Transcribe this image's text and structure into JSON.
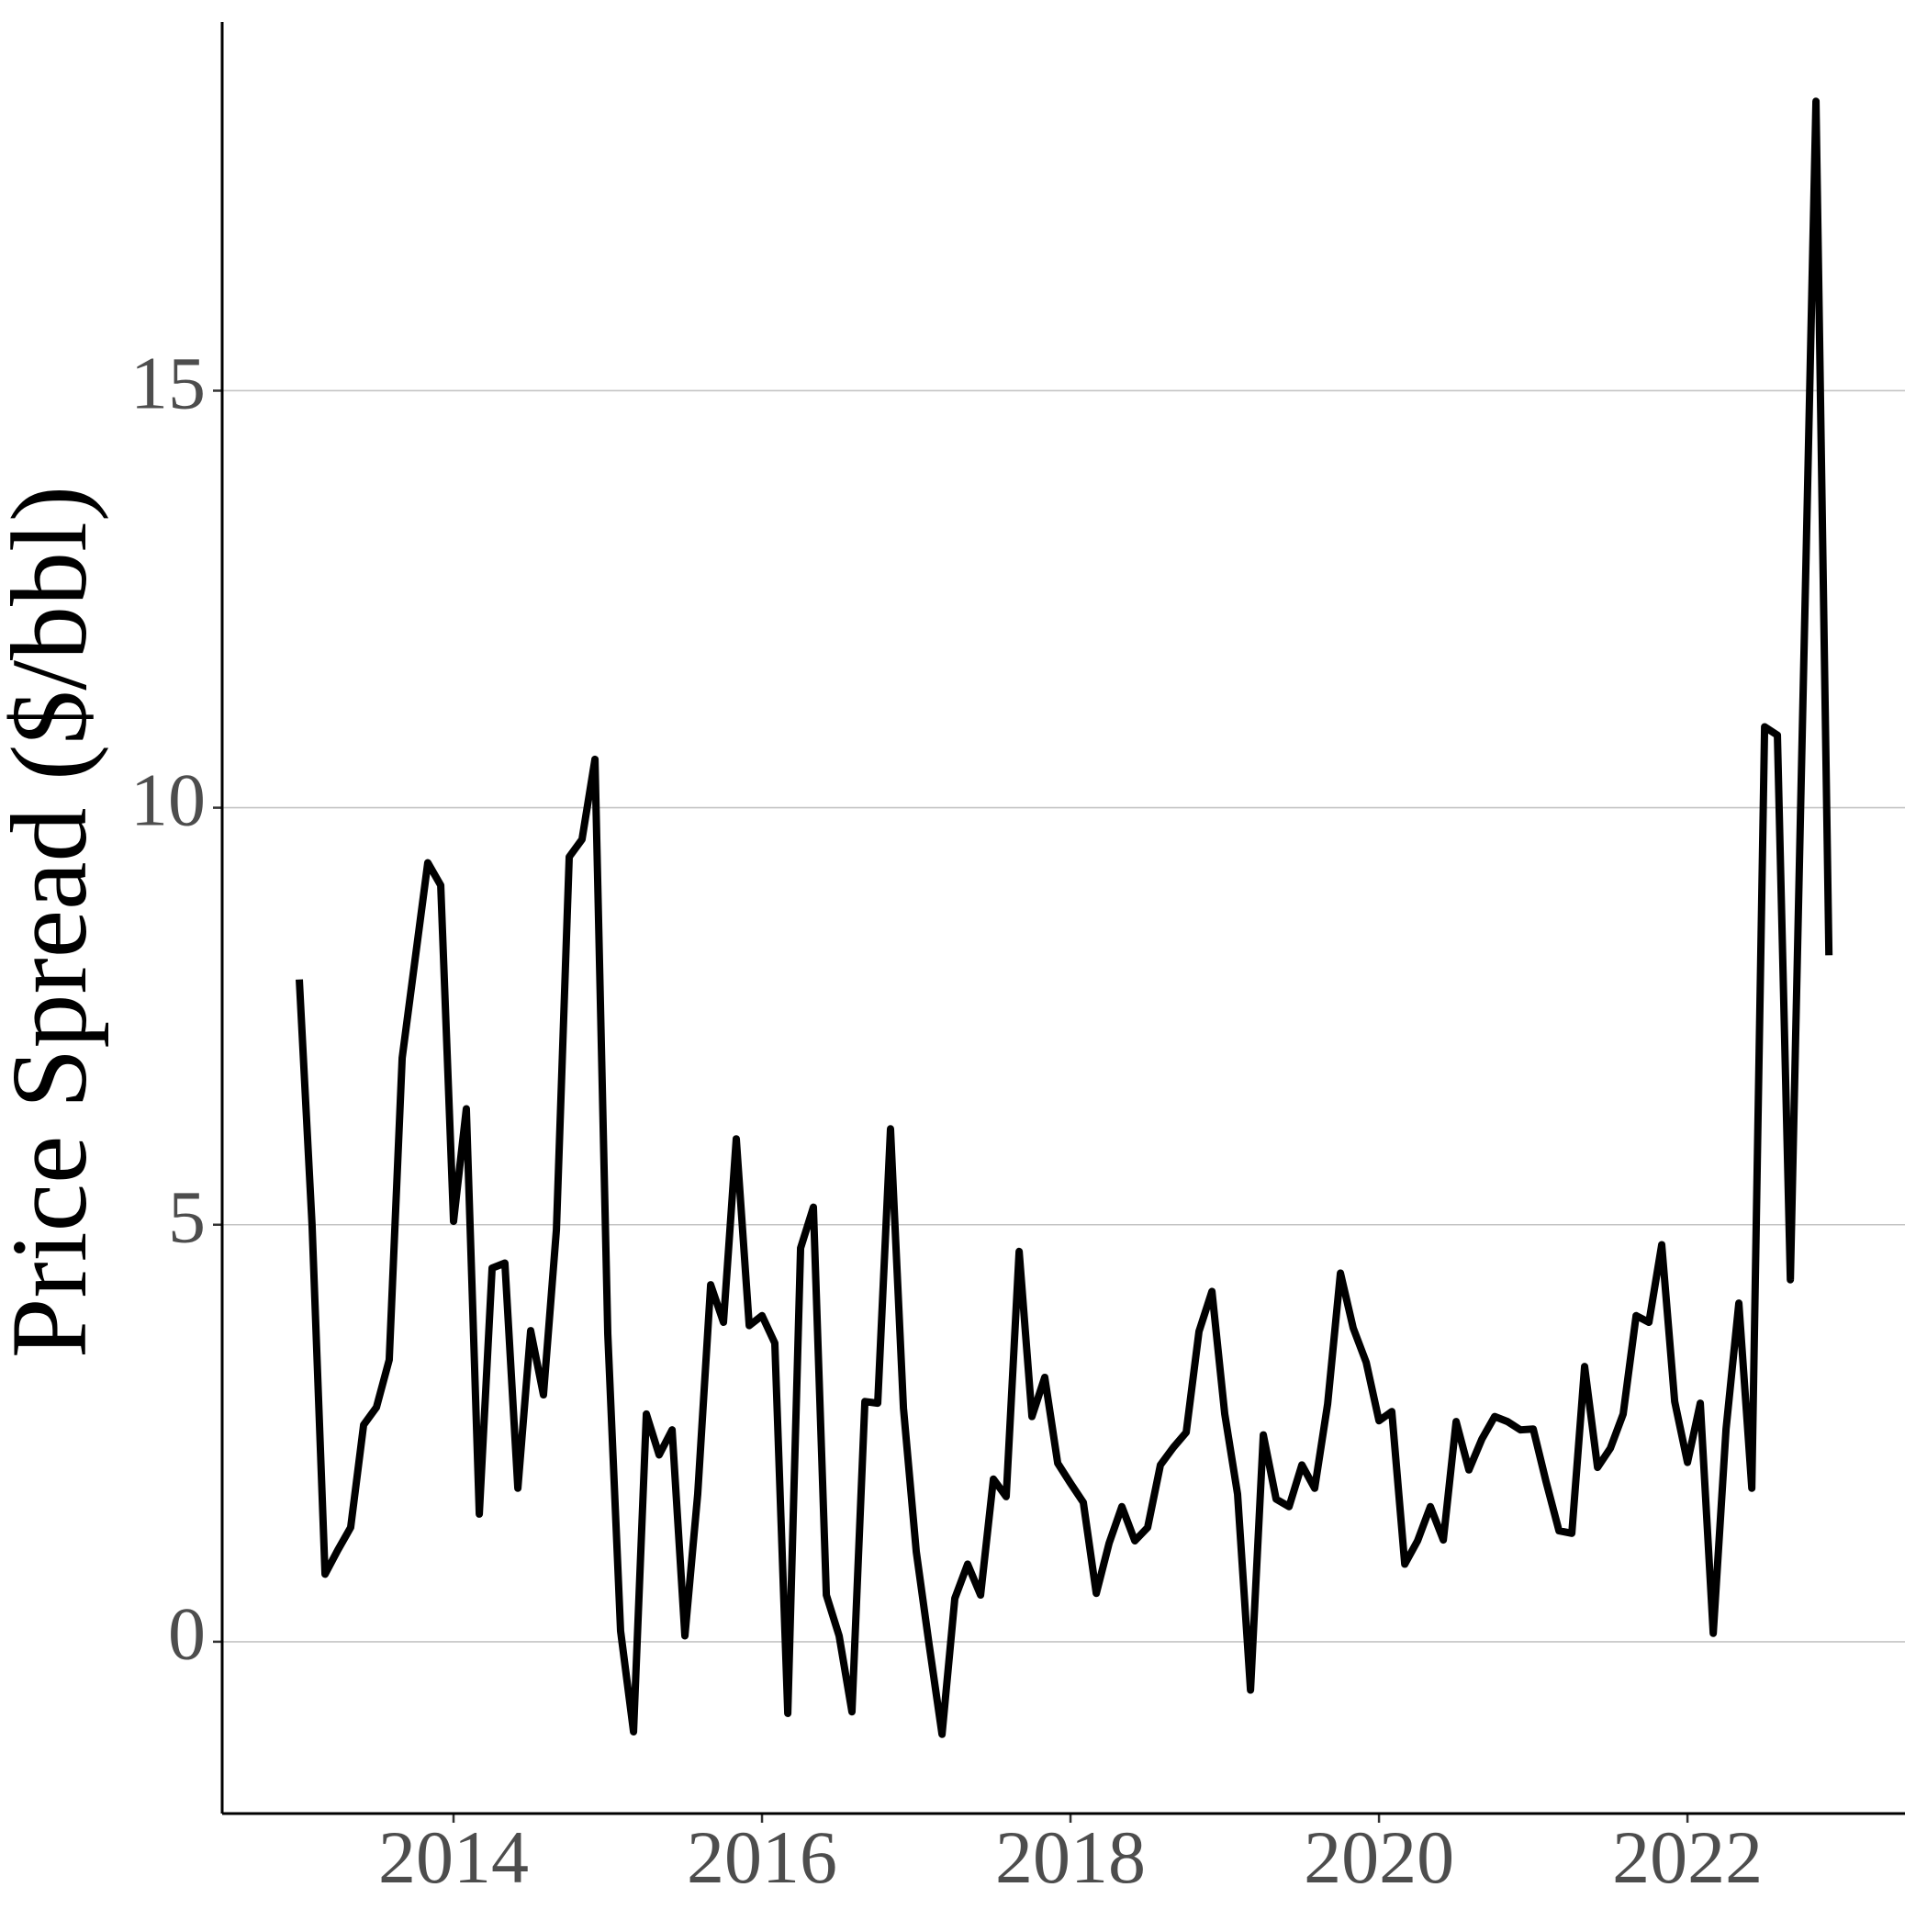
{
  "chart_data": {
    "type": "line",
    "y_label": "Price Spread ($/bbl)",
    "x": [
      2013.0,
      2013.083,
      2013.167,
      2013.25,
      2013.333,
      2013.417,
      2013.5,
      2013.583,
      2013.667,
      2013.75,
      2013.833,
      2013.917,
      2014.0,
      2014.083,
      2014.167,
      2014.25,
      2014.333,
      2014.417,
      2014.5,
      2014.583,
      2014.667,
      2014.75,
      2014.833,
      2014.917,
      2015.0,
      2015.083,
      2015.167,
      2015.25,
      2015.333,
      2015.417,
      2015.5,
      2015.583,
      2015.667,
      2015.75,
      2015.833,
      2015.917,
      2016.0,
      2016.083,
      2016.167,
      2016.25,
      2016.333,
      2016.417,
      2016.5,
      2016.583,
      2016.667,
      2016.75,
      2016.833,
      2016.917,
      2017.0,
      2017.083,
      2017.167,
      2017.25,
      2017.333,
      2017.417,
      2017.5,
      2017.583,
      2017.667,
      2017.75,
      2017.833,
      2017.917,
      2018.0,
      2018.083,
      2018.167,
      2018.25,
      2018.333,
      2018.417,
      2018.5,
      2018.583,
      2018.667,
      2018.75,
      2018.833,
      2018.917,
      2019.0,
      2019.083,
      2019.167,
      2019.25,
      2019.333,
      2019.417,
      2019.5,
      2019.583,
      2019.667,
      2019.75,
      2019.833,
      2019.917,
      2020.0,
      2020.083,
      2020.167,
      2020.25,
      2020.333,
      2020.417,
      2020.5,
      2020.583,
      2020.667,
      2020.75,
      2020.833,
      2020.917,
      2021.0,
      2021.083,
      2021.167,
      2021.25,
      2021.333,
      2021.417,
      2021.5,
      2021.583,
      2021.667,
      2021.75,
      2021.833,
      2021.917,
      2022.0,
      2022.083,
      2022.167,
      2022.25,
      2022.333,
      2022.417,
      2022.5,
      2022.583,
      2022.667,
      2022.75,
      2022.833,
      2022.917
    ],
    "values": [
      7.94,
      4.99,
      0.81,
      1.1,
      1.37,
      2.6,
      2.81,
      3.38,
      7.0,
      8.17,
      9.34,
      9.07,
      5.04,
      6.39,
      1.53,
      4.48,
      4.54,
      1.84,
      3.73,
      2.96,
      4.94,
      9.41,
      9.62,
      10.58,
      3.69,
      0.13,
      -1.08,
      2.73,
      2.24,
      2.54,
      0.07,
      1.77,
      4.28,
      3.83,
      6.03,
      3.79,
      3.91,
      3.58,
      -0.86,
      4.72,
      5.21,
      0.56,
      0.07,
      -0.84,
      2.88,
      2.86,
      6.15,
      2.8,
      1.08,
      -0.03,
      -1.11,
      0.52,
      0.93,
      0.56,
      1.95,
      1.74,
      4.68,
      2.7,
      3.17,
      2.14,
      1.9,
      1.67,
      0.58,
      1.18,
      1.62,
      1.21,
      1.37,
      2.12,
      2.33,
      2.51,
      3.72,
      4.2,
      2.73,
      1.77,
      -0.58,
      2.48,
      1.71,
      1.62,
      2.12,
      1.84,
      2.85,
      4.42,
      3.76,
      3.35,
      2.65,
      2.76,
      0.93,
      1.21,
      1.62,
      1.22,
      2.64,
      2.06,
      2.43,
      2.7,
      2.64,
      2.54,
      2.55,
      1.92,
      1.33,
      1.3,
      3.3,
      2.09,
      2.32,
      2.73,
      3.91,
      3.83,
      4.76,
      2.88,
      2.15,
      2.86,
      0.1,
      2.55,
      4.06,
      1.84,
      10.97,
      10.87,
      4.34,
      11.4,
      18.47,
      8.23
    ],
    "color": "#000000",
    "xlim": [
      2012.5,
      2023.41
    ],
    "xticks": [
      2014,
      2016,
      2018,
      2020,
      2022
    ],
    "ylim": [
      -2.06,
      19.42
    ],
    "yticks": [
      0,
      5,
      10,
      15
    ],
    "grid": true
  }
}
